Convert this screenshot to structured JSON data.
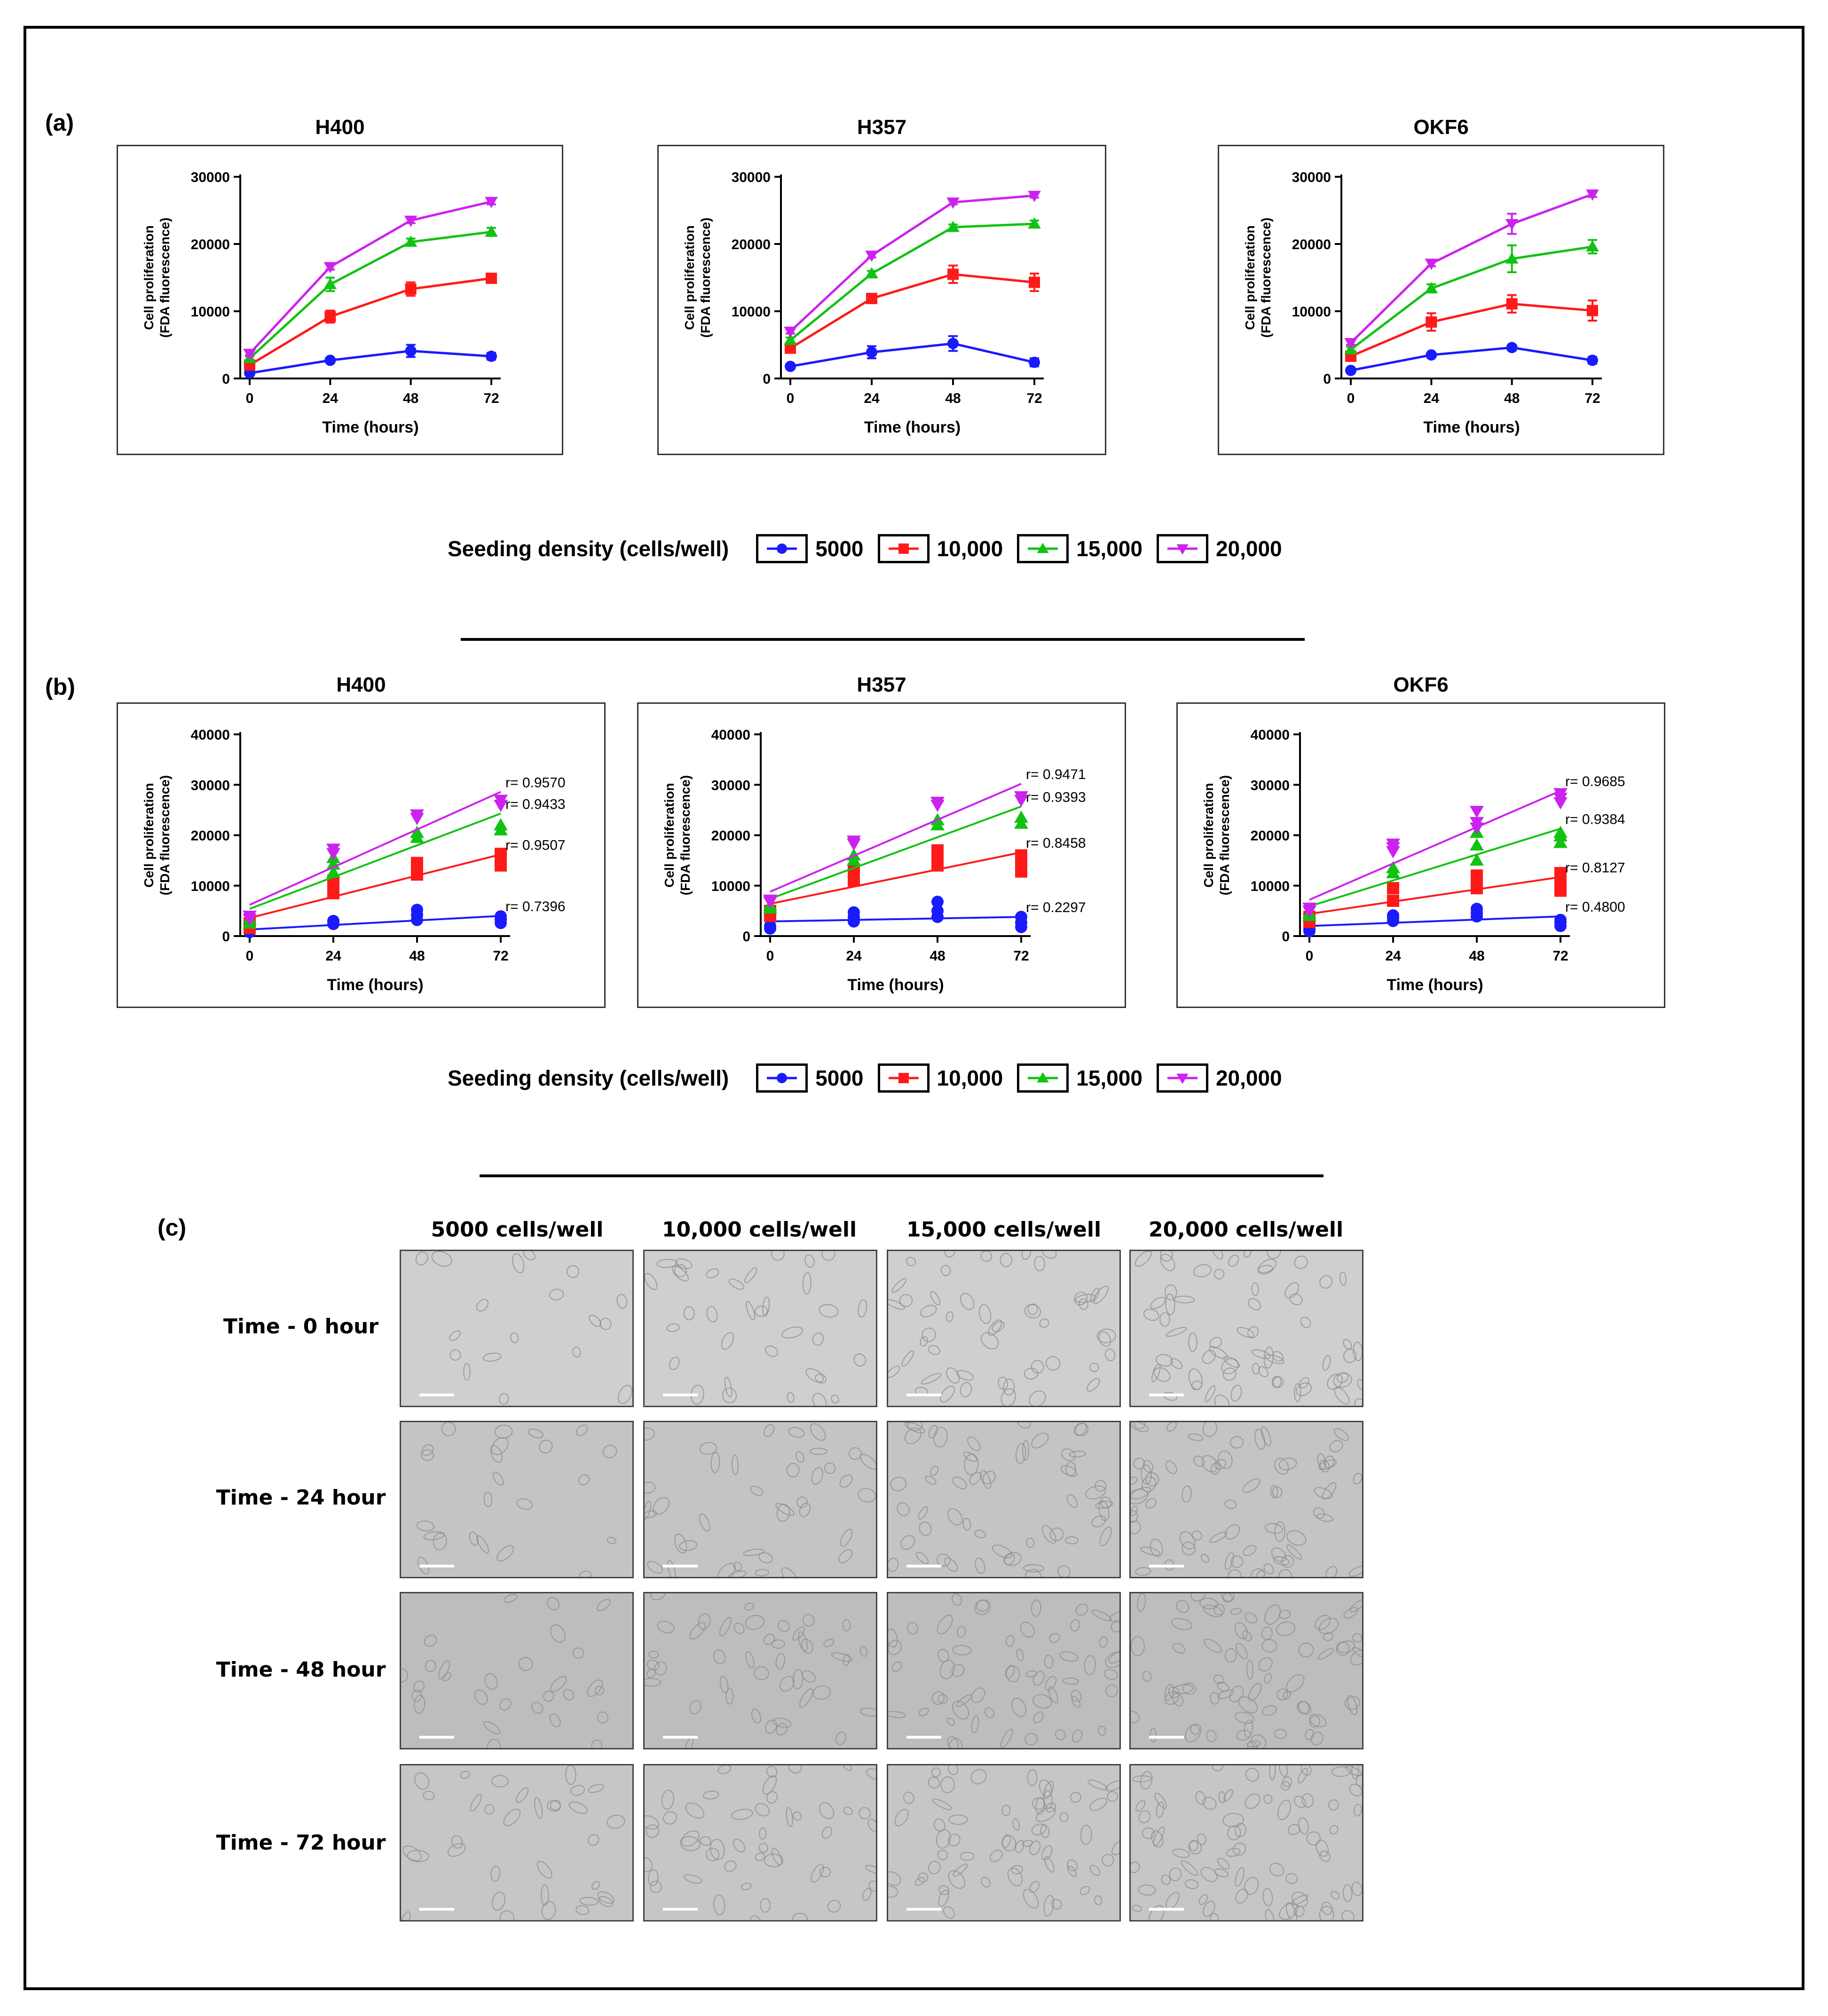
{
  "panels": {
    "a": "(a)",
    "b": "(b)",
    "c": "(c)"
  },
  "legend_a": {
    "title": "Seeding density (cells/well)",
    "items": [
      "5000",
      "10,000",
      "15,000",
      "20,000"
    ]
  },
  "legend_b": {
    "title": "Seeding density (cells/well)",
    "items": [
      "5000",
      "10,000",
      "15,000",
      "20,000"
    ]
  },
  "series_colors": {
    "5000": "#1a1aff",
    "10,000": "#ff1a1a",
    "15,000": "#12c212",
    "20,000": "#cc22ee"
  },
  "microscopy": {
    "columns": [
      "5000 cells/well",
      "10,000 cells/well",
      "15,000 cells/well",
      "20,000 cells/well"
    ],
    "rows": [
      "Time - 0 hour",
      "Time - 24 hour",
      "Time - 48 hour",
      "Time - 72 hour"
    ]
  },
  "chart_data": [
    {
      "id": "a-H400",
      "type": "line",
      "title": "H400",
      "xlabel": "Time (hours)",
      "ylabel": [
        "Cell proliferation",
        "(FDA fluorescence)"
      ],
      "x": [
        0,
        24,
        48,
        72
      ],
      "xticks": [
        "0",
        "24",
        "48",
        "72"
      ],
      "ylim": [
        0,
        30000
      ],
      "yticks": [
        "0",
        "10000",
        "20000",
        "30000"
      ],
      "ytick_values": [
        0,
        10000,
        20000,
        30000
      ],
      "series": [
        {
          "name": "5000",
          "values": [
            800,
            2700,
            4100,
            3300
          ],
          "err": [
            200,
            300,
            900,
            500
          ]
        },
        {
          "name": "10,000",
          "values": [
            2000,
            9200,
            13300,
            14900
          ],
          "err": [
            400,
            900,
            1000,
            600
          ]
        },
        {
          "name": "15,000",
          "values": [
            3000,
            14000,
            20300,
            21800
          ],
          "err": [
            500,
            1000,
            500,
            600
          ]
        },
        {
          "name": "20,000",
          "values": [
            3700,
            16600,
            23500,
            26300
          ],
          "err": [
            400,
            400,
            400,
            400
          ]
        }
      ]
    },
    {
      "id": "a-H357",
      "type": "line",
      "title": "H357",
      "xlabel": "Time (hours)",
      "ylabel": [
        "Cell proliferation",
        "(FDA fluorescence)"
      ],
      "x": [
        0,
        24,
        48,
        72
      ],
      "xticks": [
        "0",
        "24",
        "48",
        "72"
      ],
      "ylim": [
        0,
        30000
      ],
      "yticks": [
        "0",
        "10000",
        "20000",
        "30000"
      ],
      "ytick_values": [
        0,
        10000,
        20000,
        30000
      ],
      "series": [
        {
          "name": "5000",
          "values": [
            1800,
            3900,
            5200,
            2400
          ],
          "err": [
            200,
            900,
            1100,
            600
          ]
        },
        {
          "name": "10,000",
          "values": [
            4500,
            11900,
            15500,
            14300
          ],
          "err": [
            600,
            600,
            1300,
            1300
          ]
        },
        {
          "name": "15,000",
          "values": [
            5700,
            15600,
            22500,
            23000
          ],
          "err": [
            400,
            400,
            400,
            500
          ]
        },
        {
          "name": "20,000",
          "values": [
            7000,
            18300,
            26200,
            27200
          ],
          "err": [
            300,
            300,
            300,
            300
          ]
        }
      ]
    },
    {
      "id": "a-OKF6",
      "type": "line",
      "title": "OKF6",
      "xlabel": "Time (hours)",
      "ylabel": [
        "Cell proliferation",
        "(FDA fluorescence)"
      ],
      "x": [
        0,
        24,
        48,
        72
      ],
      "xticks": [
        "0",
        "24",
        "48",
        "72"
      ],
      "ylim": [
        0,
        30000
      ],
      "yticks": [
        "0",
        "10000",
        "20000",
        "30000"
      ],
      "ytick_values": [
        0,
        10000,
        20000,
        30000
      ],
      "series": [
        {
          "name": "5000",
          "values": [
            1200,
            3500,
            4600,
            2700
          ],
          "err": [
            200,
            300,
            400,
            500
          ]
        },
        {
          "name": "10,000",
          "values": [
            3300,
            8400,
            11100,
            10100
          ],
          "err": [
            500,
            1300,
            1300,
            1500
          ]
        },
        {
          "name": "15,000",
          "values": [
            4300,
            13400,
            17800,
            19600
          ],
          "err": [
            400,
            600,
            2000,
            1000
          ]
        },
        {
          "name": "20,000",
          "values": [
            5300,
            17100,
            23000,
            27400
          ],
          "err": [
            300,
            400,
            1500,
            400
          ]
        }
      ]
    },
    {
      "id": "b-H400",
      "type": "scatter",
      "title": "H400",
      "xlabel": "Time (hours)",
      "ylabel": [
        "Cell proliferation",
        "(FDA fluorescence)"
      ],
      "x": [
        0,
        24,
        48,
        72
      ],
      "xticks": [
        "0",
        "24",
        "48",
        "72"
      ],
      "ylim": [
        0,
        40000
      ],
      "yticks": [
        "0",
        "10000",
        "20000",
        "30000",
        "40000"
      ],
      "ytick_values": [
        0,
        10000,
        20000,
        30000,
        40000
      ],
      "series": [
        {
          "name": "5000",
          "points": [
            [
              0,
              800
            ],
            [
              0,
              1100
            ],
            [
              24,
              2400
            ],
            [
              24,
              3000
            ],
            [
              48,
              3200
            ],
            [
              48,
              4200
            ],
            [
              48,
              5200
            ],
            [
              72,
              2600
            ],
            [
              72,
              3300
            ],
            [
              72,
              3900
            ]
          ],
          "fit": [
            1300,
            4000
          ],
          "r_label": "r= 0.7396"
        },
        {
          "name": "10,000",
          "points": [
            [
              0,
              1600
            ],
            [
              0,
              2500
            ],
            [
              24,
              8500
            ],
            [
              24,
              9800
            ],
            [
              24,
              11000
            ],
            [
              48,
              12200
            ],
            [
              48,
              13500
            ],
            [
              48,
              14500
            ],
            [
              72,
              14000
            ],
            [
              72,
              15200
            ],
            [
              72,
              16300
            ]
          ],
          "fit": [
            3600,
            16200
          ],
          "r_label": "r= 0.9507"
        },
        {
          "name": "15,000",
          "points": [
            [
              0,
              2500
            ],
            [
              0,
              3400
            ],
            [
              24,
              12600
            ],
            [
              24,
              14200
            ],
            [
              24,
              15500
            ],
            [
              48,
              19500
            ],
            [
              48,
              20500
            ],
            [
              72,
              21000
            ],
            [
              72,
              22000
            ]
          ],
          "fit": [
            5400,
            24300
          ],
          "r_label": "r= 0.9433"
        },
        {
          "name": "20,000",
          "points": [
            [
              0,
              3400
            ],
            [
              0,
              4000
            ],
            [
              24,
              16400
            ],
            [
              24,
              17300
            ],
            [
              48,
              23400
            ],
            [
              48,
              24100
            ],
            [
              72,
              26000
            ],
            [
              72,
              27000
            ]
          ],
          "fit": [
            6200,
            28600
          ],
          "r_label": "r= 0.9570"
        }
      ]
    },
    {
      "id": "b-H357",
      "type": "scatter",
      "title": "H357",
      "xlabel": "Time (hours)",
      "ylabel": [
        "Cell proliferation",
        "(FDA fluorescence)"
      ],
      "x": [
        0,
        24,
        48,
        72
      ],
      "xticks": [
        "0",
        "24",
        "48",
        "72"
      ],
      "ylim": [
        0,
        40000
      ],
      "yticks": [
        "0",
        "10000",
        "20000",
        "30000",
        "40000"
      ],
      "ytick_values": [
        0,
        10000,
        20000,
        30000,
        40000
      ],
      "series": [
        {
          "name": "5000",
          "points": [
            [
              0,
              1500
            ],
            [
              0,
              2000
            ],
            [
              24,
              2900
            ],
            [
              24,
              3800
            ],
            [
              24,
              4700
            ],
            [
              48,
              3800
            ],
            [
              48,
              5000
            ],
            [
              48,
              6800
            ],
            [
              72,
              1800
            ],
            [
              72,
              2700
            ],
            [
              72,
              3800
            ]
          ],
          "fit": [
            2900,
            3800
          ],
          "r_label": "r= 0.2297"
        },
        {
          "name": "10,000",
          "points": [
            [
              0,
              4000
            ],
            [
              0,
              5000
            ],
            [
              24,
              11000
            ],
            [
              24,
              12000
            ],
            [
              24,
              13200
            ],
            [
              48,
              14000
            ],
            [
              48,
              15500
            ],
            [
              48,
              17000
            ],
            [
              72,
              12800
            ],
            [
              72,
              14300
            ],
            [
              72,
              16000
            ]
          ],
          "fit": [
            6400,
            16600
          ],
          "r_label": "r= 0.8458"
        },
        {
          "name": "15,000",
          "points": [
            [
              0,
              5500
            ],
            [
              0,
              6000
            ],
            [
              24,
              15000
            ],
            [
              24,
              16000
            ],
            [
              48,
              22000
            ],
            [
              48,
              23000
            ],
            [
              72,
              22300
            ],
            [
              72,
              23500
            ]
          ],
          "fit": [
            7400,
            25700
          ],
          "r_label": "r= 0.9393"
        },
        {
          "name": "20,000",
          "points": [
            [
              0,
              6800
            ],
            [
              0,
              7200
            ],
            [
              24,
              18300
            ],
            [
              24,
              18900
            ],
            [
              48,
              26000
            ],
            [
              48,
              26600
            ],
            [
              72,
              27000
            ],
            [
              72,
              27700
            ]
          ],
          "fit": [
            8800,
            30200
          ],
          "r_label": "r= 0.9471"
        }
      ]
    },
    {
      "id": "b-OKF6",
      "type": "scatter",
      "title": "OKF6",
      "xlabel": "Time (hours)",
      "ylabel": [
        "Cell proliferation",
        "(FDA fluorescence)"
      ],
      "x": [
        0,
        24,
        48,
        72
      ],
      "xticks": [
        "0",
        "24",
        "48",
        "72"
      ],
      "ylim": [
        0,
        40000
      ],
      "yticks": [
        "0",
        "10000",
        "20000",
        "30000",
        "40000"
      ],
      "ytick_values": [
        0,
        10000,
        20000,
        30000,
        40000
      ],
      "series": [
        {
          "name": "5000",
          "points": [
            [
              0,
              1000
            ],
            [
              0,
              1400
            ],
            [
              24,
              3000
            ],
            [
              24,
              3600
            ],
            [
              24,
              4100
            ],
            [
              48,
              3900
            ],
            [
              48,
              4600
            ],
            [
              48,
              5400
            ],
            [
              72,
              2000
            ],
            [
              72,
              2700
            ],
            [
              72,
              3200
            ]
          ],
          "fit": [
            2000,
            3900
          ],
          "r_label": "r= 0.4800"
        },
        {
          "name": "10,000",
          "points": [
            [
              0,
              2800
            ],
            [
              0,
              3800
            ],
            [
              24,
              7000
            ],
            [
              24,
              9500
            ],
            [
              48,
              9500
            ],
            [
              48,
              11000
            ],
            [
              48,
              12000
            ],
            [
              72,
              9000
            ],
            [
              72,
              10500
            ],
            [
              72,
              12500
            ]
          ],
          "fit": [
            4400,
            11700
          ],
          "r_label": "r= 0.8127"
        },
        {
          "name": "15,000",
          "points": [
            [
              0,
              4000
            ],
            [
              0,
              4500
            ],
            [
              24,
              12500
            ],
            [
              24,
              13500
            ],
            [
              48,
              15000
            ],
            [
              48,
              18000
            ],
            [
              48,
              20500
            ],
            [
              72,
              18500
            ],
            [
              72,
              19800
            ],
            [
              72,
              20500
            ]
          ],
          "fit": [
            5900,
            21300
          ],
          "r_label": "r= 0.9384"
        },
        {
          "name": "20,000",
          "points": [
            [
              0,
              5000
            ],
            [
              0,
              5600
            ],
            [
              24,
              16800
            ],
            [
              24,
              17600
            ],
            [
              24,
              18300
            ],
            [
              48,
              21500
            ],
            [
              48,
              22600
            ],
            [
              48,
              24800
            ],
            [
              72,
              26500
            ],
            [
              72,
              27400
            ],
            [
              72,
              28300
            ]
          ],
          "fit": [
            7200,
            28800
          ],
          "r_label": "r= 0.9685"
        }
      ]
    }
  ]
}
